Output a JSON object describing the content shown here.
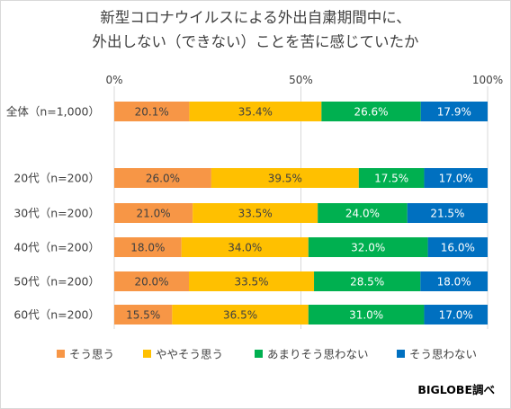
{
  "chart_data": {
    "type": "bar",
    "orientation": "horizontal",
    "stacked": true,
    "percent_stacked": true,
    "title": "新型コロナウイルスによる外出自粛期間中に、\n外出しない（できない）ことを苦に感じていたか",
    "categories": [
      "全体（n=1,000）",
      "20代（n=200）",
      "30代（n=200）",
      "40代（n=200）",
      "50代（n=200）",
      "60代（n=200）"
    ],
    "series": [
      {
        "name": "そう思う",
        "color": "#f79646",
        "values": [
          20.1,
          26.0,
          21.0,
          18.0,
          20.0,
          15.5
        ],
        "labels": [
          "20.1%",
          "26.0%",
          "21.0%",
          "18.0%",
          "20.0%",
          "15.5%"
        ]
      },
      {
        "name": "ややそう思う",
        "color": "#ffc000",
        "values": [
          35.4,
          39.5,
          33.5,
          34.0,
          33.5,
          36.5
        ],
        "labels": [
          "35.4%",
          "39.5%",
          "33.5%",
          "34.0%",
          "33.5%",
          "36.5%"
        ]
      },
      {
        "name": "あまりそう思わない",
        "color": "#00b050",
        "values": [
          26.6,
          17.5,
          24.0,
          32.0,
          28.5,
          31.0
        ],
        "labels": [
          "26.6%",
          "17.5%",
          "24.0%",
          "32.0%",
          "28.5%",
          "31.0%"
        ]
      },
      {
        "name": "そう思わない",
        "color": "#0070c0",
        "values": [
          17.9,
          17.0,
          21.5,
          16.0,
          18.0,
          17.0
        ],
        "labels": [
          "17.9%",
          "17.0%",
          "21.5%",
          "16.0%",
          "18.0%",
          "17.0%"
        ]
      }
    ],
    "xlim": [
      0,
      100
    ],
    "x_ticks": [
      0,
      50,
      100
    ],
    "x_tick_labels": [
      "0%",
      "50%",
      "100%"
    ],
    "grid": "vertical-at-ticks",
    "legend_position": "bottom",
    "source": "BIGLOBE調べ"
  }
}
